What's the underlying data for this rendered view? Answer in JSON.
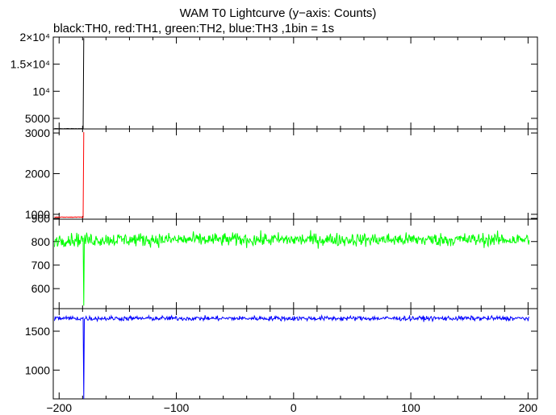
{
  "title": "WAM T0 Lightcurve (y−axis: Counts)",
  "subtitle": "black:TH0, red:TH1, green:TH2, blue:TH3 ,1bin = 1s",
  "chart_data": {
    "type": "line",
    "xlim": [
      -205,
      208
    ],
    "x_ticks": [
      -200,
      -100,
      0,
      100,
      200
    ],
    "x_tick_labels": [
      "−200",
      "−100",
      "0",
      "100",
      "200"
    ],
    "bin_seconds": 1,
    "grid": false,
    "panels": [
      {
        "name": "TH0",
        "color": "#000000",
        "ylim": [
          3050,
          20000
        ],
        "y_ticks": [
          5000,
          10000,
          15000,
          20000
        ],
        "y_tick_labels": [
          "5000",
          "10⁴",
          "1.5×10⁴",
          "2×10⁴"
        ],
        "baseline": 3100,
        "noise": 40,
        "spike": {
          "x": -179,
          "peak": 19800,
          "decay": [
            3700
          ]
        },
        "extra_spikes": [
          {
            "x": -1,
            "value": 3900
          },
          {
            "x": 60,
            "value": 3400
          },
          {
            "x": 140,
            "value": 3350
          },
          {
            "x": 188,
            "value": 3500
          }
        ]
      },
      {
        "name": "TH1",
        "color": "#ff0000",
        "ylim": [
          880,
          3100
        ],
        "y_ticks": [
          900,
          1000,
          2000,
          3000
        ],
        "y_tick_labels": [
          "900",
          "1000",
          "2000",
          "3000"
        ],
        "baseline": 930,
        "noise": 10,
        "spike": {
          "x": -179,
          "peak": 3020,
          "decay": [
            1000
          ]
        },
        "extra_spikes": []
      },
      {
        "name": "TH2",
        "color": "#00ff00",
        "ylim": [
          515,
          895
        ],
        "y_ticks": [
          600,
          700,
          800
        ],
        "y_tick_labels": [
          "600",
          "700",
          "800"
        ],
        "baseline": 808,
        "noise": 28,
        "spike": {
          "x": -179,
          "peak": 528,
          "decay": []
        },
        "extra_spikes": []
      },
      {
        "name": "TH3",
        "color": "#0000ff",
        "ylim": [
          630,
          1790
        ],
        "y_ticks": [
          1000,
          1500
        ],
        "y_tick_labels": [
          "1000",
          "1500"
        ],
        "baseline": 1665,
        "noise": 30,
        "spike": {
          "x": -179,
          "peak": 630,
          "decay": []
        },
        "extra_spikes": []
      }
    ]
  }
}
